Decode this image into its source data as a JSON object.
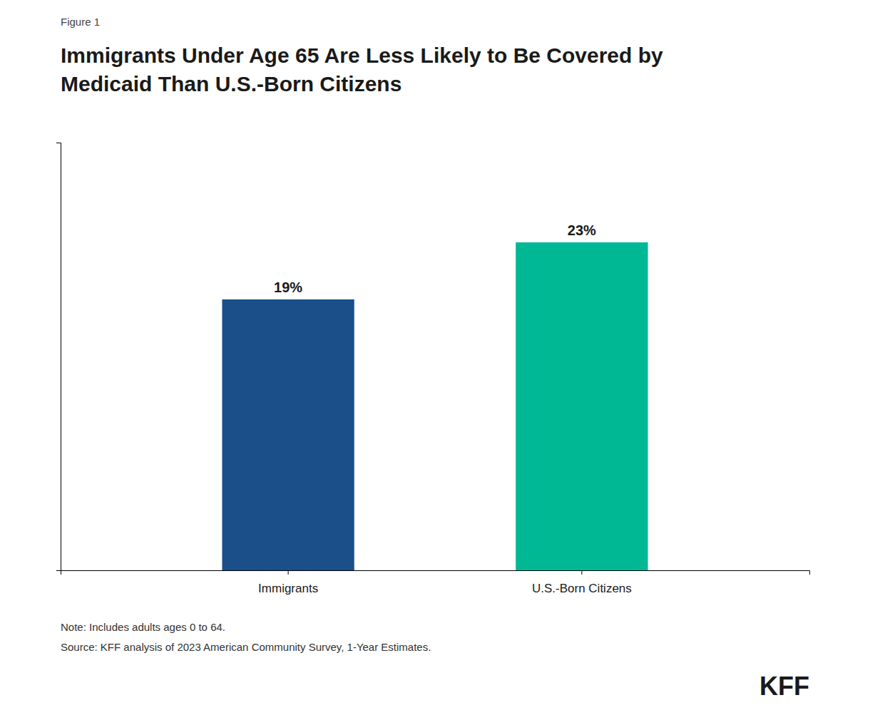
{
  "chart_data": {
    "type": "bar",
    "title": [
      "Immigrants Under Age 65 Are Less Likely to Be Covered by",
      "Medicaid Than U.S.-Born Citizens"
    ],
    "annotations": [
      "Figure 1",
      "Note: Includes adults ages 0 to 64.",
      "Source: KFF analysis of 2023 American Community Survey, 1-Year Estimates.",
      "KFF"
    ],
    "categories": [
      "Immigrants",
      "U.S.-Born Citizens"
    ],
    "values": [
      19,
      23
    ],
    "value_labels": [
      "19%",
      "23%"
    ],
    "colors": [
      "#1a4f8a",
      "#00b894"
    ],
    "ylim": [
      0,
      30
    ],
    "grid": false,
    "data_labels": true,
    "tick_labels": "x"
  }
}
